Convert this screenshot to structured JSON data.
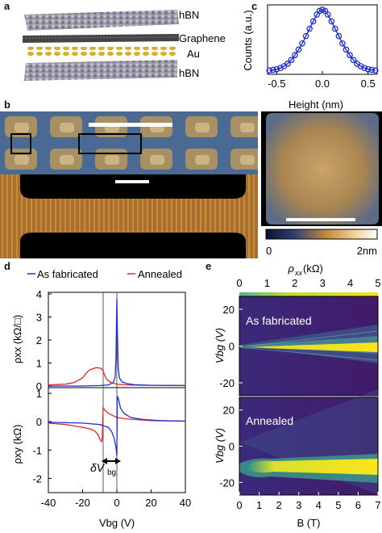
{
  "panel_labels": {
    "a": "a",
    "b": "b",
    "c": "c",
    "d": "d",
    "e": "e"
  },
  "panel_a": {
    "layers": [
      "hBN",
      "Graphene",
      "Au",
      "hBN"
    ],
    "colors": {
      "hbn": "#8c8c9a",
      "graphene": "#3a3a3a",
      "au": "#c9a41e"
    }
  },
  "panel_b": {
    "colorbar": {
      "min_label": "0",
      "max_label": "2nm"
    },
    "colors": {
      "low": "#1e2b52",
      "mid": "#c98a3a",
      "high": "#fff4d6",
      "background": "#000000"
    }
  },
  "panel_c": {
    "colors": {
      "series": "#1f2fd0"
    }
  },
  "panel_d": {
    "legend": {
      "as_fabricated": "As fabricated",
      "annealed": "Annealed"
    },
    "annotation": "δV",
    "annotation_sub": "bg",
    "colors": {
      "as_fabricated": "#1f2fd0",
      "annealed": "#e02a2a"
    }
  },
  "panel_e": {
    "top_axis_label": "ρ",
    "top_axis_sub": "xx",
    "top_axis_unit": " (kΩ)",
    "top_ticks": [
      "0",
      "1",
      "2",
      "3",
      "4",
      "5"
    ],
    "panel_texts": [
      "As fabricated",
      "Annealed"
    ]
  },
  "chart_data": [
    {
      "type": "scatter",
      "xlabel": "Height (nm)",
      "ylabel": "Counts (a.u.)",
      "xlim": [
        -0.6,
        0.6
      ],
      "xticks": [
        "-0.5",
        "0.0",
        "0.5"
      ],
      "series": [
        {
          "x": [
            -0.58,
            -0.54,
            -0.5,
            -0.46,
            -0.42,
            -0.38,
            -0.34,
            -0.3,
            -0.26,
            -0.22,
            -0.18,
            -0.14,
            -0.1,
            -0.06,
            -0.03,
            0.0,
            0.03,
            0.06,
            0.1,
            0.14,
            0.18,
            0.22,
            0.26,
            0.3,
            0.34,
            0.38,
            0.42,
            0.46,
            0.5,
            0.54,
            0.58
          ],
          "y": [
            0.01,
            0.02,
            0.03,
            0.05,
            0.08,
            0.12,
            0.18,
            0.26,
            0.35,
            0.45,
            0.57,
            0.69,
            0.81,
            0.92,
            0.98,
            1.0,
            0.98,
            0.92,
            0.81,
            0.69,
            0.57,
            0.45,
            0.35,
            0.26,
            0.18,
            0.12,
            0.08,
            0.05,
            0.03,
            0.02,
            0.01
          ]
        }
      ]
    },
    {
      "type": "line",
      "ylabel": "ρxx (kΩ/□)",
      "xlim": [
        -40,
        40
      ],
      "ylim": [
        0,
        4
      ],
      "yticks": [
        "0",
        "1",
        "2",
        "3",
        "4"
      ],
      "series": [
        {
          "name": "As fabricated",
          "x": [
            -40,
            -20,
            -10,
            -5,
            -2,
            -1,
            -0.5,
            0,
            0.3,
            0.8,
            1.5,
            3,
            6,
            10,
            20,
            40
          ],
          "y": [
            0.0,
            0.0,
            0.02,
            0.05,
            0.15,
            0.4,
            1.2,
            3.8,
            2.5,
            0.8,
            0.35,
            0.18,
            0.1,
            0.06,
            0.03,
            0.02
          ]
        },
        {
          "name": "Annealed",
          "x": [
            -40,
            -30,
            -25,
            -20,
            -18,
            -16,
            -14,
            -12,
            -10,
            -9,
            -8,
            -7,
            -6,
            -4,
            -2,
            0,
            5,
            10,
            20,
            40
          ],
          "y": [
            0.05,
            0.08,
            0.15,
            0.35,
            0.55,
            0.7,
            0.75,
            0.8,
            0.78,
            0.75,
            0.65,
            0.45,
            0.3,
            0.18,
            0.12,
            0.08,
            0.05,
            0.04,
            0.03,
            0.02
          ]
        }
      ]
    },
    {
      "type": "line",
      "xlabel": "Vbg (V)",
      "ylabel": "ρxy (kΩ)",
      "xlim": [
        -40,
        40
      ],
      "ylim": [
        -2.5,
        1.2
      ],
      "xticks": [
        "-40",
        "-20",
        "0",
        "20",
        "40"
      ],
      "yticks": [
        "-2",
        "-1",
        "0",
        "1"
      ],
      "series": [
        {
          "name": "As fabricated",
          "x": [
            -40,
            -20,
            -10,
            -5,
            -3,
            -1.5,
            -0.5,
            0,
            0.3,
            1,
            2,
            4,
            8,
            15,
            25,
            40
          ],
          "y": [
            -0.02,
            -0.05,
            -0.1,
            -0.2,
            -0.35,
            -0.6,
            -0.9,
            -1.2,
            0.9,
            0.8,
            0.5,
            0.3,
            0.15,
            0.08,
            0.04,
            0.02
          ]
        },
        {
          "name": "Annealed",
          "x": [
            -40,
            -30,
            -25,
            -20,
            -16,
            -13,
            -11,
            -10,
            -9,
            -8.5,
            -8,
            -7,
            -5,
            -2,
            0,
            5,
            10,
            20,
            40
          ],
          "y": [
            -0.05,
            -0.1,
            -0.15,
            -0.2,
            -0.25,
            -0.32,
            -0.45,
            -0.6,
            -0.7,
            -0.6,
            0.5,
            0.4,
            0.3,
            0.2,
            0.15,
            0.1,
            0.08,
            0.04,
            0.02
          ]
        }
      ]
    },
    {
      "type": "heatmap",
      "panel": "As fabricated",
      "xlabel": "B (T)",
      "ylabel": "Vbg (V)",
      "xlim": [
        0,
        7
      ],
      "ylim": [
        -27,
        27
      ],
      "yticks": [
        "-20",
        "0",
        "20"
      ],
      "colorbar_range": [
        0,
        5
      ]
    },
    {
      "type": "heatmap",
      "panel": "Annealed",
      "xlabel": "B (T)",
      "ylabel": "Vbg (V)",
      "xlim": [
        0,
        7
      ],
      "ylim": [
        -27,
        27
      ],
      "xticks": [
        "0",
        "1",
        "2",
        "3",
        "4",
        "5",
        "6",
        "7"
      ],
      "yticks": [
        "-20",
        "0",
        "20"
      ],
      "colorbar_range": [
        0,
        5
      ]
    }
  ]
}
